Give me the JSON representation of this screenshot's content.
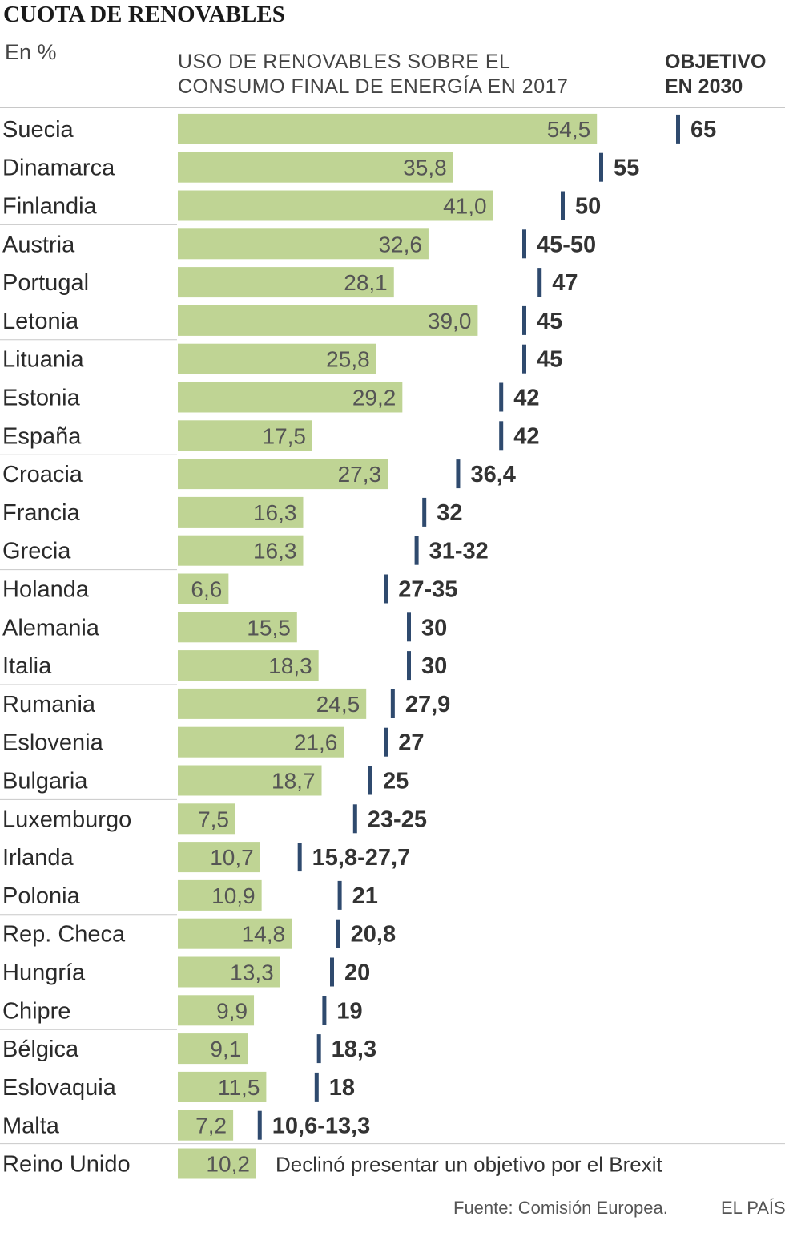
{
  "header": {
    "title": "CUOTA DE RENOVABLES",
    "unit": "En %",
    "column_label_line1": "USO DE RENOVABLES SOBRE EL",
    "column_label_line2": "CONSUMO FINAL DE ENERGÍA EN 2017",
    "target_label_line1": "OBJETIVO",
    "target_label_line2": "EN 2030"
  },
  "footer": {
    "source": "Fuente: Comisión Europea.",
    "brand": "EL PAÍS"
  },
  "colors": {
    "bar": "#bfd494",
    "target_marker": "#2f4a6e",
    "separator": "#c8c8c8"
  },
  "chart_data": {
    "type": "bar",
    "orientation": "horizontal",
    "categories": [
      "Suecia",
      "Dinamarca",
      "Finlandia",
      "Austria",
      "Portugal",
      "Letonia",
      "Lituania",
      "Estonia",
      "España",
      "Croacia",
      "Francia",
      "Grecia",
      "Holanda",
      "Alemania",
      "Italia",
      "Rumania",
      "Eslovenia",
      "Bulgaria",
      "Luxemburgo",
      "Irlanda",
      "Polonia",
      "Rep. Checa",
      "Hungría",
      "Chipre",
      "Bélgica",
      "Eslovaquia",
      "Malta",
      "Reino Unido"
    ],
    "series": [
      {
        "name": "USO DE RENOVABLES SOBRE EL CONSUMO FINAL DE ENERGÍA EN 2017",
        "values": [
          54.5,
          35.8,
          41.0,
          32.6,
          28.1,
          39.0,
          25.8,
          29.2,
          17.5,
          27.3,
          16.3,
          16.3,
          6.6,
          15.5,
          18.3,
          24.5,
          21.6,
          18.7,
          7.5,
          10.7,
          10.9,
          14.8,
          13.3,
          9.9,
          9.1,
          11.5,
          7.2,
          10.2
        ],
        "labels": [
          "54,5",
          "35,8",
          "41,0",
          "32,6",
          "28,1",
          "39,0",
          "25,8",
          "29,2",
          "17,5",
          "27,3",
          "16,3",
          "16,3",
          "6,6",
          "15,5",
          "18,3",
          "24,5",
          "21,6",
          "18,7",
          "7,5",
          "10,7",
          "10,9",
          "14,8",
          "13,3",
          "9,9",
          "9,1",
          "11,5",
          "7,2",
          "10,2"
        ]
      },
      {
        "name": "OBJETIVO EN 2030",
        "values": [
          65,
          55,
          50,
          45,
          47,
          45,
          45,
          42,
          42,
          36.4,
          32,
          31,
          27,
          30,
          30,
          27.9,
          27,
          25,
          23,
          15.8,
          21,
          20.8,
          20,
          19,
          18.3,
          18,
          10.6,
          null
        ],
        "labels": [
          "65",
          "55",
          "50",
          "45-50",
          "47",
          "45",
          "45",
          "42",
          "42",
          "36,4",
          "32",
          "31-32",
          "27-35",
          "30",
          "30",
          "27,9",
          "27",
          "25",
          "23-25",
          "15,8-27,7",
          "21",
          "20,8",
          "20",
          "19",
          "18,3",
          "18",
          "10,6-13,3",
          ""
        ]
      }
    ],
    "note": "Declinó presentar un objetivo por el Brexit"
  }
}
